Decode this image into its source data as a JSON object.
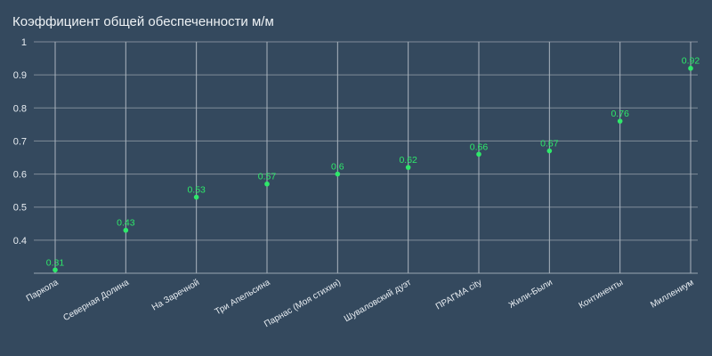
{
  "chart_data": {
    "type": "scatter",
    "title": "Коэффициент общей обеспеченности м/м",
    "xlabel": "",
    "ylabel": "",
    "categories": [
      "Паркола",
      "Северная Долина",
      "На Заречной",
      "Три Апельсина",
      "Парнас (Моя стихия)",
      "Шуваловский дуэт",
      "ПРАГМА city",
      "Жили-Были",
      "Континенты",
      "Миллениум"
    ],
    "values": [
      0.31,
      0.43,
      0.53,
      0.57,
      0.6,
      0.62,
      0.66,
      0.67,
      0.76,
      0.92
    ],
    "data_labels": [
      "0.31",
      "0.43",
      "0.53",
      "0.57",
      "0.6",
      "0.62",
      "0.66",
      "0.67",
      "0.76",
      "0.92"
    ],
    "yticks": [
      "0.4",
      "0.5",
      "0.6",
      "0.7",
      "0.8",
      "0.9",
      "1"
    ],
    "ytick_values": [
      0.4,
      0.5,
      0.6,
      0.7,
      0.8,
      0.9,
      1
    ],
    "ylim": [
      0.3,
      1.0
    ],
    "grid": true,
    "legend": "none",
    "colors": {
      "background": "#34495e",
      "point": "#2ee86a",
      "grid": "#7f8c99",
      "text": "#e8edf2"
    }
  }
}
